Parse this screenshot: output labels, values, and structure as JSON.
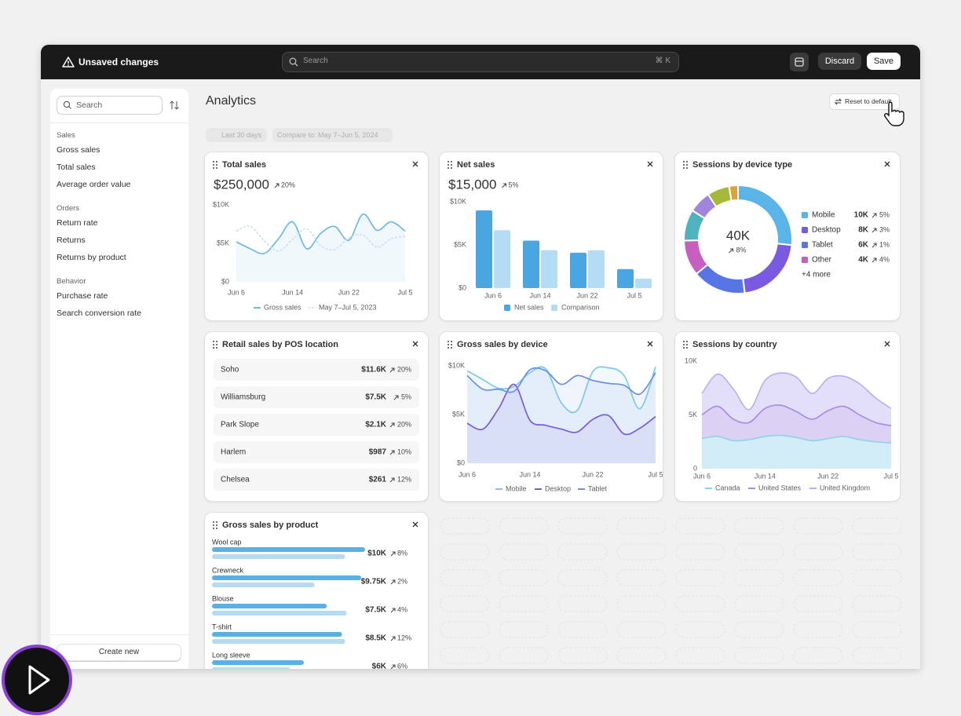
{
  "topbar": {
    "status": "Unsaved changes",
    "search": "Search",
    "shortcut": "⌘ K",
    "discard": "Discard",
    "save": "Save"
  },
  "sidebar": {
    "search": "Search",
    "groups": [
      {
        "title": "Sales",
        "items": [
          "Gross sales",
          "Total sales",
          "Average order value"
        ]
      },
      {
        "title": "Orders",
        "items": [
          "Return rate",
          "Returns",
          "Returns by product"
        ]
      },
      {
        "title": "Behavior",
        "items": [
          "Purchase rate",
          "Search conversion rate"
        ]
      }
    ],
    "create": "Create new"
  },
  "header": {
    "title": "Analytics",
    "reset": "Reset to default",
    "date_range": "Last 30 days",
    "compare": "Compare to: May 7–Jun 5, 2024"
  },
  "cards": [
    {
      "title": "Total sales",
      "value": "$250,000",
      "change": "20%",
      "chart": {
        "type": "line",
        "fill": true,
        "categories": [
          "Jun 6",
          null,
          null,
          null,
          "Jun 14",
          null,
          null,
          null,
          "Jun 22",
          null,
          null,
          null,
          "Jul 5"
        ],
        "ylim": [
          0,
          10000
        ],
        "yticks": [
          {
            "value": 0,
            "label": "$0"
          },
          {
            "value": 5000,
            "label": "$5K"
          },
          {
            "value": 10000,
            "label": "$10K"
          }
        ],
        "series": [
          {
            "name": "Gross sales",
            "color": "#6fb8e6",
            "values": [
              5200,
              4300,
              3700,
              5600,
              7800,
              4300,
              6300,
              7200,
              5400,
              8800,
              6700,
              7800,
              6600
            ]
          },
          {
            "name": "May 7–Jul 5, 2023",
            "color": "#c8e2f3",
            "dashed": true,
            "values": [
              6600,
              7200,
              5300,
              4000,
              5500,
              6900,
              4700,
              4200,
              5700,
              6100,
              4500,
              5600,
              5900
            ]
          }
        ]
      }
    },
    {
      "title": "Net sales",
      "value": "$15,000",
      "change": "5%",
      "chart": {
        "type": "bar",
        "categories": [
          "Jun 6",
          "Jun 14",
          "Jun 22",
          "Jul 5"
        ],
        "ylim": [
          0,
          10000
        ],
        "yticks": [
          {
            "value": 0,
            "label": "$0"
          },
          {
            "value": 5000,
            "label": "$5K"
          },
          {
            "value": 10000,
            "label": "$10K"
          }
        ],
        "series": [
          {
            "name": "Net sales",
            "color": "#4aa6e0",
            "values": [
              9000,
              5500,
              4100,
              2200
            ]
          },
          {
            "name": "Comparison",
            "color": "#b4dcf3",
            "values": [
              6700,
              4400,
              4400,
              1100
            ]
          }
        ]
      }
    },
    {
      "title": "Sessions by device type",
      "chart": {
        "type": "donut",
        "center": "40K",
        "change": "8%",
        "names": [
          "Mobile",
          "Desktop",
          "Tablet",
          "Other",
          null,
          null,
          null,
          null
        ],
        "values": [
          10000,
          8000,
          6000,
          4000,
          3500,
          2500,
          2500,
          1000
        ],
        "value_labels": [
          "10K",
          "8K",
          "6K",
          "4K",
          null,
          null,
          null,
          null
        ],
        "changes": [
          "5%",
          "3%",
          "1%",
          "4%",
          null,
          null,
          null,
          null
        ],
        "colors": [
          "#5ab4e8",
          "#7a5ae0",
          "#5875e6",
          "#c65fc0",
          "#4fb3bf",
          "#a185dc",
          "#a6b83a",
          "#e0a040"
        ],
        "more": "+4 more"
      }
    },
    {
      "title": "Retail sales by POS location",
      "rows": [
        [
          "Soho",
          "$11.6K",
          "20%"
        ],
        [
          "Williamsburg",
          "$7.5K",
          "5%"
        ],
        [
          "Park Slope",
          "$2.1K",
          "20%"
        ],
        [
          "Harlem",
          "$987",
          "10%"
        ],
        [
          "Chelsea",
          "$261",
          "12%"
        ]
      ]
    },
    {
      "title": "Gross sales by device",
      "chart": {
        "type": "line",
        "fill": true,
        "categories": [
          "Jun 6",
          null,
          null,
          null,
          "Jun 14",
          null,
          null,
          null,
          "Jun 22",
          null,
          null,
          null,
          "Jul 5"
        ],
        "ylim": [
          0,
          10000
        ],
        "yticks": [
          {
            "value": 0,
            "label": "$0"
          },
          {
            "value": 5000,
            "label": "$5K"
          },
          {
            "value": 10000,
            "label": "$10K"
          }
        ],
        "series": [
          {
            "name": "Mobile",
            "color": "#7cc8ec",
            "values": [
              9500,
              8600,
              7700,
              7900,
              9300,
              9700,
              6200,
              5400,
              9400,
              9800,
              9000,
              5600,
              9900
            ]
          },
          {
            "name": "Desktop",
            "color": "#7a5bd8",
            "values": [
              4100,
              3500,
              5600,
              8100,
              4400,
              3900,
              3500,
              3200,
              4500,
              4900,
              3000,
              3600,
              4800
            ]
          },
          {
            "name": "Tablet",
            "color": "#6b8fe4",
            "values": [
              9000,
              7600,
              7600,
              7400,
              9600,
              9500,
              8100,
              9000,
              8500,
              8200,
              8000,
              7100,
              9300
            ]
          }
        ]
      }
    },
    {
      "title": "Sessions by country",
      "chart": {
        "type": "area",
        "stacked": true,
        "categories": [
          "Jun 6",
          null,
          null,
          null,
          "Jun 14",
          null,
          null,
          null,
          "Jun 22",
          null,
          null,
          null,
          "Jul 5"
        ],
        "ylim": [
          0,
          10000
        ],
        "yticks": [
          0,
          {
            "value": 5000,
            "label": "5K"
          },
          {
            "value": 10000,
            "label": "10K"
          }
        ],
        "series": [
          {
            "name": "Canada",
            "color": "#8fd0ee",
            "values": [
              2800,
              3000,
              2600,
              2700,
              3000,
              3100,
              2900,
              2600,
              2800,
              3000,
              2700,
              2500,
              2400
            ]
          },
          {
            "name": "United States",
            "color": "#a48be6",
            "values": [
              2200,
              2800,
              2000,
              1600,
              2600,
              2800,
              2400,
              2000,
              2600,
              2800,
              2300,
              1800,
              1600
            ]
          },
          {
            "name": "United Kingdom",
            "color": "#b9aef0",
            "values": [
              2000,
              3000,
              2800,
              1200,
              2600,
              3000,
              3200,
              2400,
              3000,
              2800,
              2900,
              2300,
              1600
            ]
          }
        ]
      }
    },
    {
      "title": "Gross sales by product",
      "chart": {
        "type": "hbar",
        "categories": [
          "Wool cap",
          "Crewneck",
          "Blouse",
          "T-shirt",
          "Long sleeve"
        ],
        "xlim": [
          0,
          10000
        ],
        "changes": [
          "8%",
          "2%",
          "4%",
          "12%",
          "6%"
        ],
        "series": [
          {
            "color": "#5ab0e4",
            "values": [
              10000,
              9750,
              7500,
              8500,
              6000
            ],
            "value_labels": [
              "$10K",
              "$9.75K",
              "$7.5K",
              "$8.5K",
              "$6K"
            ]
          },
          {
            "color": "#b4dbf2",
            "values": [
              8700,
              6700,
              8800,
              8700,
              5100
            ]
          }
        ]
      }
    }
  ]
}
